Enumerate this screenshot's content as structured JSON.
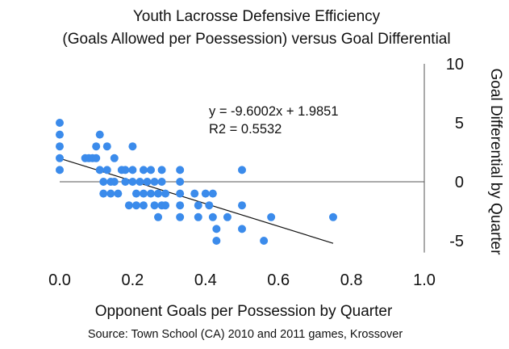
{
  "chart_data": {
    "type": "scatter",
    "title_lines": [
      "Youth Lacrosse Defensive Efficiency",
      "(Goals Allowed per Poessession) versus Goal Differential"
    ],
    "xlabel": "Opponent Goals per Possession by Quarter",
    "ylabel": "Goal Differential by Quarter",
    "source": "Source: Town School (CA) 2010 and 2011 games, Krossover",
    "xlim": [
      0.0,
      1.0
    ],
    "ylim": [
      -6,
      10
    ],
    "x_ticks": [
      0.0,
      0.2,
      0.4,
      0.6,
      0.8,
      1.0
    ],
    "x_tick_labels": [
      "0.0",
      "0.2",
      "0.4",
      "0.6",
      "0.8",
      "1.0"
    ],
    "y_ticks": [
      10,
      5,
      0,
      -5
    ],
    "y_tick_labels": [
      "10",
      "5",
      "0",
      "-5"
    ],
    "y_axis_position": "right",
    "grid": false,
    "marker_color": "#3b8beb",
    "trendline": {
      "label": "y = -9.6002x + 1.9851",
      "r2_label": "R2 = 0.5532",
      "slope": -9.6002,
      "intercept": 1.9851,
      "x_range": [
        0.0,
        0.75
      ]
    },
    "points": [
      [
        0.0,
        5
      ],
      [
        0.0,
        4
      ],
      [
        0.0,
        3
      ],
      [
        0.0,
        2
      ],
      [
        0.0,
        1
      ],
      [
        0.07,
        2
      ],
      [
        0.08,
        2
      ],
      [
        0.09,
        2
      ],
      [
        0.1,
        3
      ],
      [
        0.1,
        2
      ],
      [
        0.11,
        4
      ],
      [
        0.11,
        1
      ],
      [
        0.12,
        0
      ],
      [
        0.12,
        -1
      ],
      [
        0.13,
        3
      ],
      [
        0.13,
        1
      ],
      [
        0.14,
        0
      ],
      [
        0.14,
        -1
      ],
      [
        0.15,
        2
      ],
      [
        0.15,
        0
      ],
      [
        0.16,
        -1
      ],
      [
        0.17,
        1
      ],
      [
        0.18,
        1
      ],
      [
        0.18,
        0
      ],
      [
        0.19,
        -2
      ],
      [
        0.2,
        3
      ],
      [
        0.2,
        1
      ],
      [
        0.2,
        0
      ],
      [
        0.21,
        -1
      ],
      [
        0.21,
        -2
      ],
      [
        0.22,
        0
      ],
      [
        0.23,
        1
      ],
      [
        0.23,
        -1
      ],
      [
        0.23,
        -2
      ],
      [
        0.24,
        0
      ],
      [
        0.25,
        1
      ],
      [
        0.25,
        -1
      ],
      [
        0.26,
        0
      ],
      [
        0.26,
        -2
      ],
      [
        0.27,
        -1
      ],
      [
        0.27,
        -3
      ],
      [
        0.28,
        1
      ],
      [
        0.28,
        0
      ],
      [
        0.28,
        -2
      ],
      [
        0.29,
        -1
      ],
      [
        0.29,
        -2
      ],
      [
        0.33,
        1
      ],
      [
        0.33,
        0
      ],
      [
        0.33,
        -1
      ],
      [
        0.33,
        -2
      ],
      [
        0.33,
        -3
      ],
      [
        0.37,
        -1
      ],
      [
        0.38,
        -2
      ],
      [
        0.38,
        -3
      ],
      [
        0.4,
        -1
      ],
      [
        0.41,
        -2
      ],
      [
        0.42,
        -1
      ],
      [
        0.42,
        -3
      ],
      [
        0.43,
        -4
      ],
      [
        0.43,
        -5
      ],
      [
        0.46,
        -3
      ],
      [
        0.5,
        1
      ],
      [
        0.5,
        -2
      ],
      [
        0.5,
        -4
      ],
      [
        0.56,
        -5
      ],
      [
        0.58,
        -3
      ],
      [
        0.75,
        -3
      ]
    ]
  }
}
